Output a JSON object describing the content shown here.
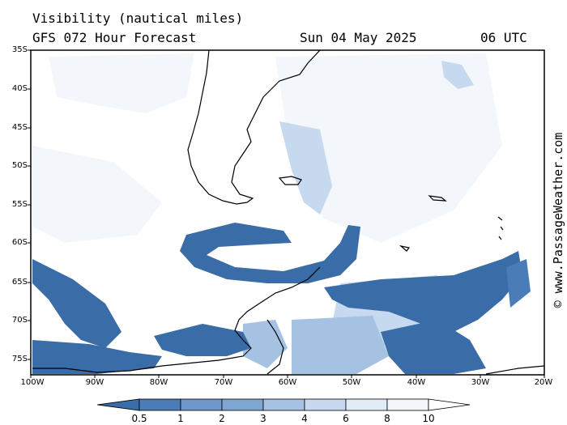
{
  "header": {
    "title": "Visibility (nautical miles)",
    "subtitle": "GFS 072 Hour Forecast",
    "date": "Sun 04 May 2025",
    "time": "06 UTC"
  },
  "credit": "© www.PassageWeather.com",
  "map": {
    "lat_labels": [
      "35S",
      "40S",
      "45S",
      "50S",
      "55S",
      "60S",
      "65S",
      "70S",
      "75S"
    ],
    "lon_labels": [
      "100W",
      "90W",
      "80W",
      "70W",
      "60W",
      "50W",
      "40W",
      "30W",
      "20W"
    ],
    "lat_range": [
      -77.5,
      -35
    ],
    "lon_range": [
      -100,
      -20
    ],
    "colors": {
      "v05": "#3a6ca8",
      "v1": "#4a7cb8",
      "v2": "#7fa5d2",
      "v3": "#a5c2e3",
      "v4": "#c7d9ef",
      "v6": "#e2ecf7",
      "v8": "#f3f7fc",
      "v10": "#ffffff"
    }
  },
  "colorbar": {
    "labels": [
      "0.5",
      "1",
      "2",
      "3",
      "4",
      "6",
      "8",
      "10"
    ],
    "colors": [
      "#3a6ca8",
      "#4a7cb8",
      "#7fa5d2",
      "#a5c2e3",
      "#c7d9ef",
      "#e2ecf7",
      "#f3f7fc",
      "#ffffff"
    ]
  }
}
